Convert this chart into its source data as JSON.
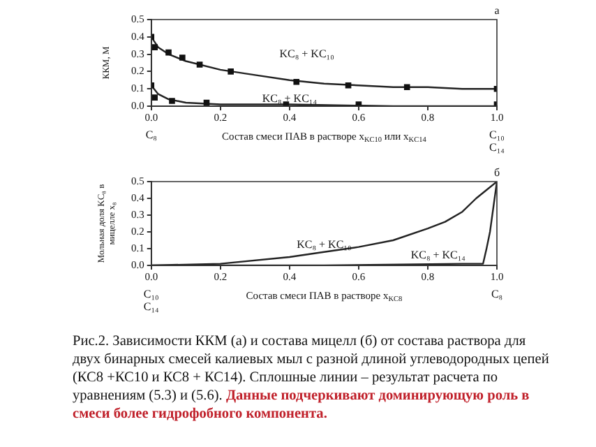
{
  "chart_data": [
    {
      "type": "line",
      "title": "а",
      "ylabel": "ККМ, М",
      "xlabel": "Состав смеси ПАВ в растворе x$_{KC10}$ или x$_{KC14}$",
      "xlim": [
        0,
        1
      ],
      "ylim": [
        0,
        0.5
      ],
      "xticks": [
        {
          "value": 0,
          "label": "0.0"
        },
        {
          "value": 0.2,
          "label": "0.2"
        },
        {
          "value": 0.4,
          "label": "0.4"
        },
        {
          "value": 0.6,
          "label": "0.6"
        },
        {
          "value": 0.8,
          "label": "0.8"
        },
        {
          "value": 1,
          "label": "1.0"
        }
      ],
      "yticks": [
        {
          "value": 0,
          "label": "0.0"
        },
        {
          "value": 0.1,
          "label": "0.1"
        },
        {
          "value": 0.2,
          "label": "0.2"
        },
        {
          "value": 0.3,
          "label": "0.3"
        },
        {
          "value": 0.4,
          "label": "0.4"
        },
        {
          "value": 0.5,
          "label": "0.5"
        }
      ],
      "grid": false,
      "legend": false,
      "series": [
        {
          "type": "scatter",
          "marker": "square",
          "color": "#111111",
          "x": [
            0,
            0.01,
            0.05,
            0.09,
            0.14,
            0.23,
            0.42,
            0.57,
            0.74,
            1
          ],
          "values": [
            0.4,
            0.34,
            0.31,
            0.28,
            0.24,
            0.2,
            0.14,
            0.12,
            0.11,
            0.1
          ]
        },
        {
          "type": "line",
          "marker": "none",
          "color": "#222222",
          "x": [
            0,
            0.02,
            0.05,
            0.1,
            0.2,
            0.3,
            0.4,
            0.5,
            0.6,
            0.7,
            0.8,
            0.9,
            1
          ],
          "values": [
            0.4,
            0.34,
            0.3,
            0.26,
            0.21,
            0.18,
            0.15,
            0.13,
            0.12,
            0.11,
            0.11,
            0.1,
            0.1
          ]
        },
        {
          "type": "scatter",
          "marker": "square",
          "color": "#111111",
          "x": [
            0,
            0.01,
            0.06,
            0.16,
            0.39,
            0.6,
            1
          ],
          "values": [
            0.12,
            0.05,
            0.03,
            0.02,
            0.01,
            0.01,
            0.01
          ]
        },
        {
          "type": "line",
          "marker": "none",
          "color": "#222222",
          "x": [
            0,
            0.02,
            0.05,
            0.1,
            0.2,
            0.4,
            0.7,
            1
          ],
          "values": [
            0.12,
            0.07,
            0.04,
            0.02,
            0.01,
            0.01,
            0,
            0
          ]
        }
      ],
      "annotations": [
        "KC₈ + KC₁₀",
        "KC₈ + KC₁₄",
        "C₈",
        "C₁₀",
        "C₁₄"
      ]
    },
    {
      "type": "line",
      "title": "б",
      "ylabel": "Мольная доля KC₈ в мицелле x₈",
      "xlabel": "Состав смеси ПАВ в растворе x$_{KC8}$",
      "xlim": [
        0,
        1
      ],
      "ylim": [
        0,
        0.5
      ],
      "xticks": [
        {
          "value": 0,
          "label": "0.0"
        },
        {
          "value": 0.2,
          "label": "0.2"
        },
        {
          "value": 0.4,
          "label": "0.4"
        },
        {
          "value": 0.6,
          "label": "0.6"
        },
        {
          "value": 0.8,
          "label": "0.8"
        },
        {
          "value": 1,
          "label": "1.0"
        }
      ],
      "yticks": [
        {
          "value": 0,
          "label": "0.0"
        },
        {
          "value": 0.1,
          "label": "0.1"
        },
        {
          "value": 0.2,
          "label": "0.2"
        },
        {
          "value": 0.3,
          "label": "0.3"
        },
        {
          "value": 0.4,
          "label": "0.4"
        },
        {
          "value": 0.5,
          "label": "0.5"
        }
      ],
      "grid": false,
      "legend": false,
      "marker": "none",
      "series": [
        {
          "color": "#222222",
          "x": [
            0,
            0.2,
            0.4,
            0.5,
            0.6,
            0.7,
            0.8,
            0.85,
            0.9,
            0.94,
            0.97,
            1
          ],
          "values": [
            0,
            0.01,
            0.05,
            0.08,
            0.11,
            0.15,
            0.22,
            0.26,
            0.32,
            0.4,
            0.45,
            0.5
          ]
        },
        {
          "color": "#222222",
          "x": [
            0,
            0.5,
            0.9,
            0.96,
            0.97,
            0.98,
            0.99,
            1
          ],
          "values": [
            0,
            0,
            0.01,
            0.01,
            0.1,
            0.2,
            0.35,
            0.5
          ]
        }
      ],
      "annotations": [
        "KC₈ + KC₁₀",
        "KC₈ + KC₁₄",
        "C₁₀",
        "C₁₄",
        "C₈",
        "Рис.2. Зависимости ККМ (а) и состава мицелл (б)  от состава раствора для двух бинарных смесей калиевых  мыл с разной длиной углеводородных цепей (КС8 +КС10 и КС8 + КС14). Сплошные линии – результат расчета по уравнениям  (5.3) и (5.6).",
        "Данные подчеркивают доминирующую роль в смеси более гидрофобного компонента."
      ]
    }
  ]
}
